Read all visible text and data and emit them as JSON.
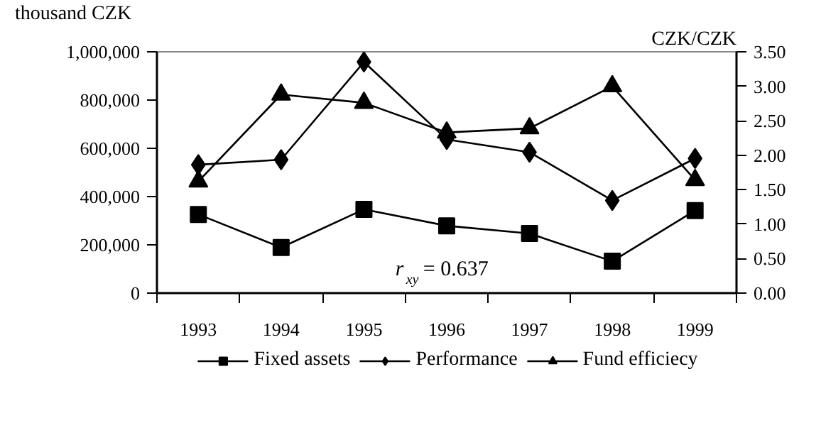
{
  "chart_data": {
    "type": "line",
    "ylabel": "thousand CZK",
    "y2label": "CZK/CZK",
    "categories": [
      "1993",
      "1994",
      "1995",
      "1996",
      "1997",
      "1998",
      "1999"
    ],
    "series": [
      {
        "name": "Fixed assets",
        "color": "#000000",
        "marker": "square",
        "values": [
          326000,
          189000,
          347000,
          279000,
          247000,
          132000,
          342000
        ]
      },
      {
        "name": "Performance",
        "color": "#000000",
        "marker": "diamond",
        "values": [
          532000,
          553000,
          958000,
          637000,
          584000,
          384000,
          558000
        ]
      },
      {
        "name": "Fund efficiecy",
        "color": "#000000",
        "marker": "triangle",
        "axis": "y2",
        "values": [
          1.62,
          2.88,
          2.76,
          2.33,
          2.39,
          3.0,
          1.64
        ]
      }
    ],
    "ylim": [
      0,
      1000000
    ],
    "yticks": [
      {
        "value": 0,
        "label": "0"
      },
      {
        "value": 200000,
        "label": "200,000"
      },
      {
        "value": 400000,
        "label": "400,000"
      },
      {
        "value": 600000,
        "label": "600,000"
      },
      {
        "value": 800000,
        "label": "800,000"
      },
      {
        "value": 1000000,
        "label": "1,000,000"
      }
    ],
    "y2lim": [
      0,
      3.5
    ],
    "y2ticks": [
      {
        "value": 0,
        "label": "0.00"
      },
      {
        "value": 0.5,
        "label": "0.50"
      },
      {
        "value": 1,
        "label": "1.00"
      },
      {
        "value": 1.5,
        "label": "1.50"
      },
      {
        "value": 2,
        "label": "2.00"
      },
      {
        "value": 2.5,
        "label": "2.50"
      },
      {
        "value": 3,
        "label": "3.00"
      },
      {
        "value": 3.5,
        "label": "3.50"
      }
    ],
    "annotations": [
      "r$_{xy}$ = 0.637"
    ],
    "grid": false,
    "legend": "bottom",
    "line_style": "solid"
  }
}
